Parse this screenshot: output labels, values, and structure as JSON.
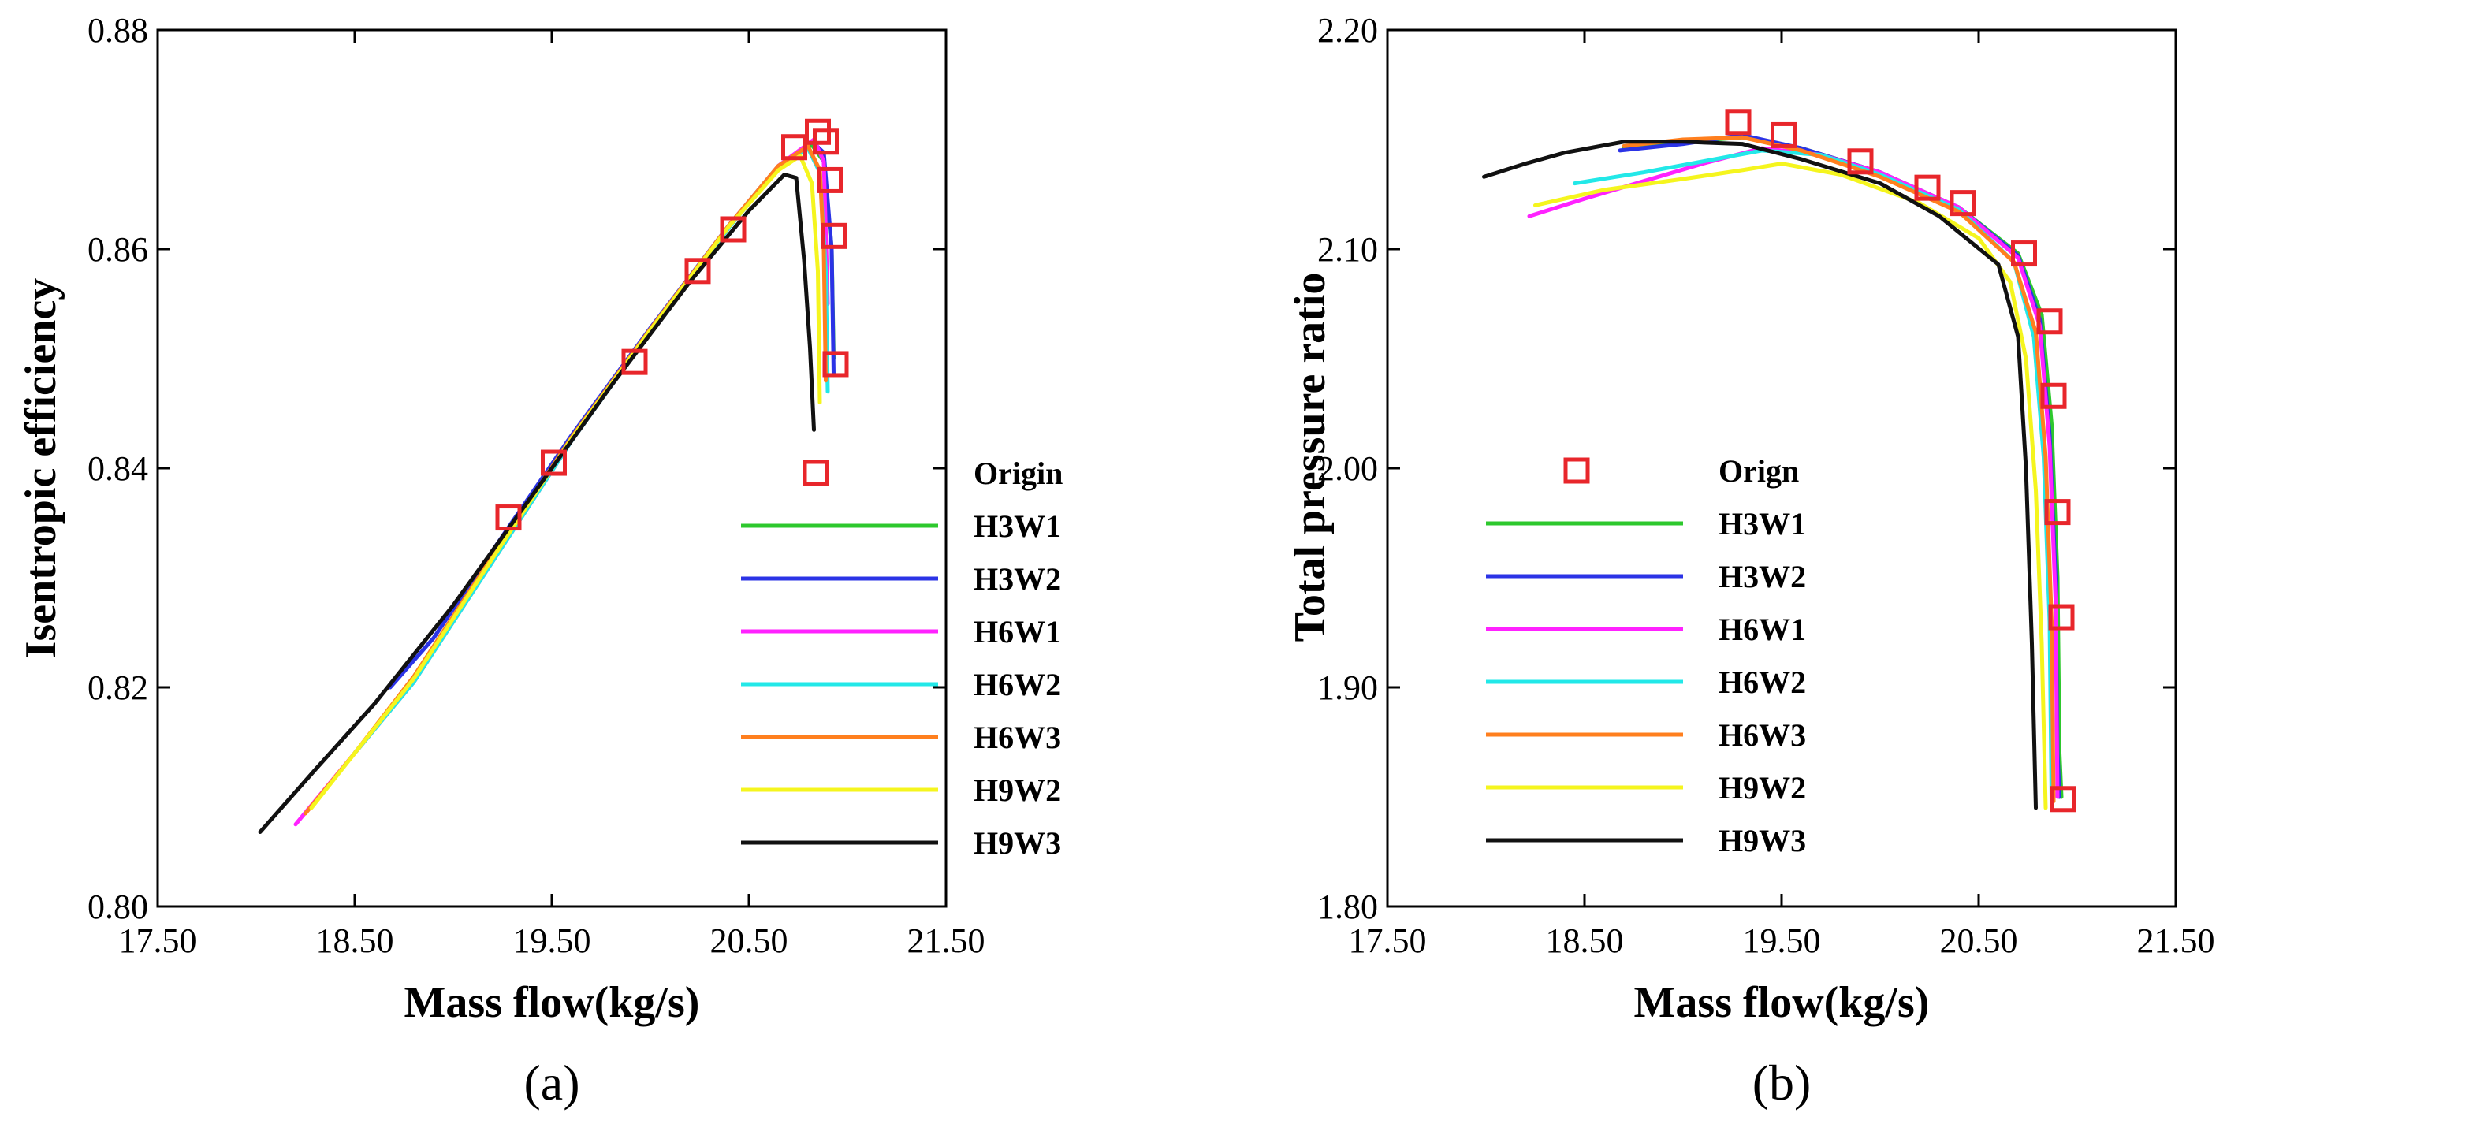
{
  "chart_data": [
    {
      "panel": "(a)",
      "type": "line",
      "xlabel": "Mass flow(kg/s)",
      "ylabel": "Isentropic efficiency",
      "xlim": [
        17.5,
        21.5
      ],
      "ylim": [
        0.8,
        0.88
      ],
      "xticks": [
        "17.50",
        "18.50",
        "19.50",
        "20.50",
        "21.50"
      ],
      "yticks": [
        "0.80",
        "0.82",
        "0.84",
        "0.86",
        "0.88"
      ],
      "xtick_values": [
        17.5,
        18.5,
        19.5,
        20.5,
        21.5
      ],
      "ytick_values": [
        0.8,
        0.82,
        0.84,
        0.86,
        0.88
      ],
      "legend_position": "bottom-right",
      "markers": {
        "name": "Origin",
        "color": "#e8262b",
        "points": [
          [
            19.28,
            0.8355
          ],
          [
            19.51,
            0.8405
          ],
          [
            19.92,
            0.8497
          ],
          [
            20.24,
            0.858
          ],
          [
            20.42,
            0.8618
          ],
          [
            20.73,
            0.8693
          ],
          [
            20.85,
            0.8707
          ],
          [
            20.89,
            0.8698
          ],
          [
            20.91,
            0.8663
          ],
          [
            20.93,
            0.8612
          ],
          [
            20.94,
            0.8495
          ]
        ]
      },
      "series": [
        {
          "name": "H3W1",
          "color": "#2dc82d",
          "points": [
            [
              18.5,
              0.814
            ],
            [
              18.8,
              0.8205
            ],
            [
              19.2,
              0.8315
            ],
            [
              19.6,
              0.8425
            ],
            [
              20.0,
              0.8525
            ],
            [
              20.4,
              0.862
            ],
            [
              20.65,
              0.8675
            ],
            [
              20.82,
              0.8695
            ],
            [
              20.88,
              0.868
            ],
            [
              20.92,
              0.86
            ],
            [
              20.93,
              0.85
            ]
          ]
        },
        {
          "name": "H3W2",
          "color": "#2b33e6",
          "points": [
            [
              18.68,
              0.82
            ],
            [
              18.9,
              0.8245
            ],
            [
              19.2,
              0.8325
            ],
            [
              19.6,
              0.843
            ],
            [
              20.0,
              0.8528
            ],
            [
              20.4,
              0.8622
            ],
            [
              20.65,
              0.8676
            ],
            [
              20.82,
              0.8698
            ],
            [
              20.88,
              0.8688
            ],
            [
              20.92,
              0.86
            ],
            [
              20.93,
              0.8485
            ]
          ]
        },
        {
          "name": "H6W1",
          "color": "#ff22ff",
          "points": [
            [
              18.2,
              0.8075
            ],
            [
              18.5,
              0.814
            ],
            [
              18.8,
              0.8205
            ],
            [
              19.2,
              0.8315
            ],
            [
              19.6,
              0.8425
            ],
            [
              20.0,
              0.8525
            ],
            [
              20.4,
              0.862
            ],
            [
              20.65,
              0.8676
            ],
            [
              20.83,
              0.87
            ],
            [
              20.88,
              0.868
            ],
            [
              20.9,
              0.855
            ]
          ]
        },
        {
          "name": "H6W2",
          "color": "#22e8e8",
          "points": [
            [
              18.5,
              0.814
            ],
            [
              18.8,
              0.8205
            ],
            [
              19.2,
              0.8315
            ],
            [
              19.6,
              0.8425
            ],
            [
              20.0,
              0.8525
            ],
            [
              20.4,
              0.862
            ],
            [
              20.65,
              0.8674
            ],
            [
              20.8,
              0.8692
            ],
            [
              20.86,
              0.867
            ],
            [
              20.89,
              0.858
            ],
            [
              20.9,
              0.847
            ]
          ]
        },
        {
          "name": "H6W3",
          "color": "#ff7f1e",
          "points": [
            [
              18.25,
              0.8085
            ],
            [
              18.5,
              0.814
            ],
            [
              18.8,
              0.821
            ],
            [
              19.2,
              0.832
            ],
            [
              19.6,
              0.8428
            ],
            [
              20.0,
              0.8527
            ],
            [
              20.4,
              0.8622
            ],
            [
              20.65,
              0.8676
            ],
            [
              20.8,
              0.8694
            ],
            [
              20.86,
              0.8672
            ],
            [
              20.88,
              0.86
            ],
            [
              20.89,
              0.848
            ]
          ]
        },
        {
          "name": "H9W2",
          "color": "#f5f51e",
          "points": [
            [
              18.28,
              0.809
            ],
            [
              18.5,
              0.814
            ],
            [
              18.8,
              0.8208
            ],
            [
              19.2,
              0.8318
            ],
            [
              19.6,
              0.8427
            ],
            [
              20.0,
              0.8526
            ],
            [
              20.4,
              0.8621
            ],
            [
              20.65,
              0.8672
            ],
            [
              20.76,
              0.8685
            ],
            [
              20.82,
              0.866
            ],
            [
              20.85,
              0.858
            ],
            [
              20.86,
              0.846
            ]
          ]
        },
        {
          "name": "H9W3",
          "color": "#111111",
          "points": [
            [
              18.02,
              0.8068
            ],
            [
              18.3,
              0.8125
            ],
            [
              18.6,
              0.8185
            ],
            [
              19.0,
              0.8275
            ],
            [
              19.4,
              0.8375
            ],
            [
              19.8,
              0.8475
            ],
            [
              20.2,
              0.857
            ],
            [
              20.5,
              0.8635
            ],
            [
              20.68,
              0.8668
            ],
            [
              20.74,
              0.8665
            ],
            [
              20.78,
              0.859
            ],
            [
              20.81,
              0.851
            ],
            [
              20.83,
              0.8435
            ]
          ]
        }
      ]
    },
    {
      "panel": "(b)",
      "type": "line",
      "xlabel": "Mass flow(kg/s)",
      "ylabel": "Total pressure ratio",
      "xlim": [
        17.5,
        21.5
      ],
      "ylim": [
        1.8,
        2.2
      ],
      "xticks": [
        "17.50",
        "18.50",
        "19.50",
        "20.50",
        "21.50"
      ],
      "yticks": [
        "1.80",
        "1.90",
        "2.00",
        "2.10",
        "2.20"
      ],
      "xtick_values": [
        17.5,
        18.5,
        19.5,
        20.5,
        21.5
      ],
      "ytick_values": [
        1.8,
        1.9,
        2.0,
        2.1,
        2.2
      ],
      "legend_position": "bottom-left",
      "markers": {
        "name": "Orign",
        "color": "#e8262b",
        "points": [
          [
            19.28,
            2.158
          ],
          [
            19.51,
            2.152
          ],
          [
            19.9,
            2.14
          ],
          [
            20.24,
            2.128
          ],
          [
            20.42,
            2.121
          ],
          [
            20.73,
            2.098
          ],
          [
            20.86,
            2.067
          ],
          [
            20.88,
            2.033
          ],
          [
            20.9,
            1.98
          ],
          [
            20.92,
            1.932
          ],
          [
            20.93,
            1.849
          ]
        ]
      },
      "series": [
        {
          "name": "H3W1",
          "color": "#2dc82d",
          "points": [
            [
              18.7,
              2.146
            ],
            [
              19.0,
              2.149
            ],
            [
              19.3,
              2.151
            ],
            [
              19.6,
              2.146
            ],
            [
              20.0,
              2.135
            ],
            [
              20.4,
              2.119
            ],
            [
              20.7,
              2.098
            ],
            [
              20.82,
              2.07
            ],
            [
              20.87,
              2.02
            ],
            [
              20.9,
              1.95
            ],
            [
              20.91,
              1.87
            ],
            [
              20.92,
              1.85
            ]
          ]
        },
        {
          "name": "H3W2",
          "color": "#2b33e6",
          "points": [
            [
              18.68,
              2.145
            ],
            [
              19.0,
              2.148
            ],
            [
              19.3,
              2.152
            ],
            [
              19.6,
              2.146
            ],
            [
              20.0,
              2.135
            ],
            [
              20.4,
              2.119
            ],
            [
              20.7,
              2.097
            ],
            [
              20.81,
              2.068
            ],
            [
              20.86,
              2.015
            ],
            [
              20.89,
              1.95
            ],
            [
              20.9,
              1.87
            ],
            [
              20.91,
              1.85
            ]
          ]
        },
        {
          "name": "H6W1",
          "color": "#ff22ff",
          "points": [
            [
              18.22,
              2.115
            ],
            [
              18.5,
              2.123
            ],
            [
              18.8,
              2.131
            ],
            [
              19.1,
              2.139
            ],
            [
              19.4,
              2.146
            ],
            [
              19.7,
              2.143
            ],
            [
              20.0,
              2.135
            ],
            [
              20.4,
              2.119
            ],
            [
              20.7,
              2.096
            ],
            [
              20.81,
              2.065
            ],
            [
              20.86,
              2.01
            ],
            [
              20.89,
              1.94
            ],
            [
              20.9,
              1.85
            ]
          ]
        },
        {
          "name": "H6W2",
          "color": "#22e8e8",
          "points": [
            [
              18.45,
              2.13
            ],
            [
              18.8,
              2.135
            ],
            [
              19.1,
              2.14
            ],
            [
              19.4,
              2.145
            ],
            [
              19.7,
              2.143
            ],
            [
              20.0,
              2.134
            ],
            [
              20.4,
              2.118
            ],
            [
              20.68,
              2.094
            ],
            [
              20.78,
              2.06
            ],
            [
              20.83,
              2.005
            ],
            [
              20.86,
              1.93
            ],
            [
              20.87,
              1.848
            ]
          ]
        },
        {
          "name": "H6W3",
          "color": "#ff7f1e",
          "points": [
            [
              18.7,
              2.147
            ],
            [
              19.0,
              2.15
            ],
            [
              19.3,
              2.151
            ],
            [
              19.6,
              2.145
            ],
            [
              20.0,
              2.133
            ],
            [
              20.4,
              2.117
            ],
            [
              20.68,
              2.094
            ],
            [
              20.79,
              2.062
            ],
            [
              20.84,
              2.005
            ],
            [
              20.87,
              1.93
            ],
            [
              20.88,
              1.848
            ]
          ]
        },
        {
          "name": "H9W2",
          "color": "#f5f51e",
          "points": [
            [
              18.25,
              2.12
            ],
            [
              18.6,
              2.127
            ],
            [
              19.0,
              2.132
            ],
            [
              19.3,
              2.136
            ],
            [
              19.5,
              2.139
            ],
            [
              19.8,
              2.134
            ],
            [
              20.2,
              2.121
            ],
            [
              20.5,
              2.105
            ],
            [
              20.66,
              2.085
            ],
            [
              20.74,
              2.05
            ],
            [
              20.79,
              1.99
            ],
            [
              20.82,
              1.92
            ],
            [
              20.84,
              1.845
            ]
          ]
        },
        {
          "name": "H9W3",
          "color": "#111111",
          "points": [
            [
              17.99,
              2.133
            ],
            [
              18.2,
              2.139
            ],
            [
              18.4,
              2.144
            ],
            [
              18.7,
              2.149
            ],
            [
              19.0,
              2.149
            ],
            [
              19.3,
              2.148
            ],
            [
              19.6,
              2.141
            ],
            [
              20.0,
              2.13
            ],
            [
              20.3,
              2.115
            ],
            [
              20.6,
              2.093
            ],
            [
              20.7,
              2.06
            ],
            [
              20.74,
              2.0
            ],
            [
              20.77,
              1.92
            ],
            [
              20.79,
              1.845
            ]
          ]
        }
      ]
    }
  ]
}
